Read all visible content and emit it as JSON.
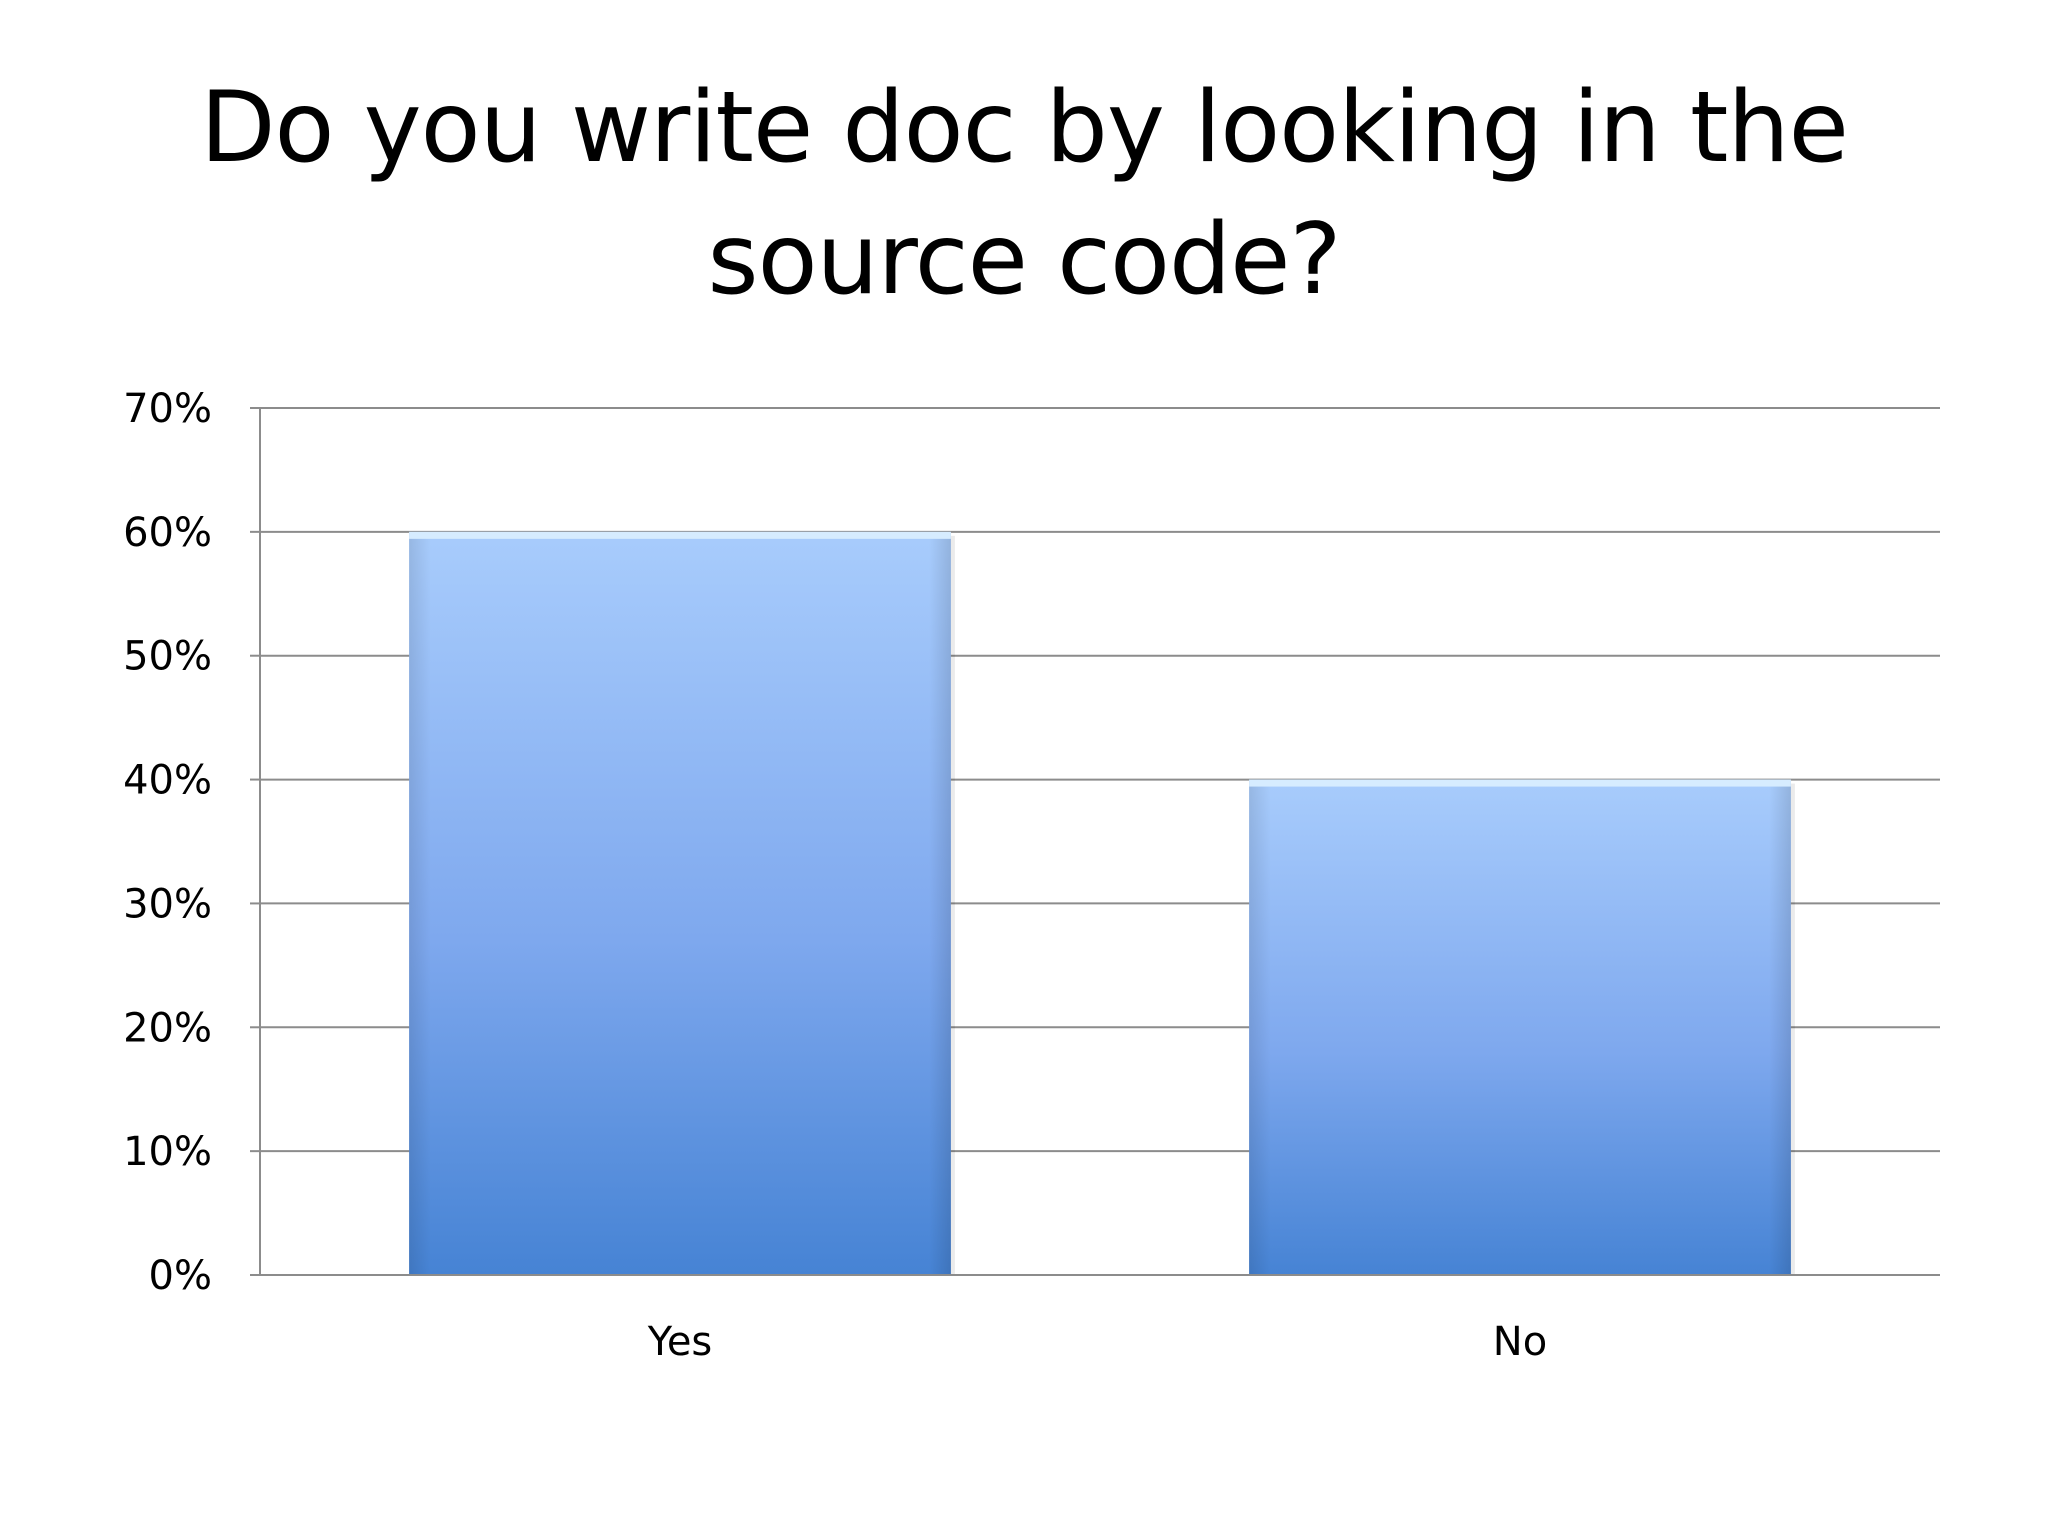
{
  "chart_data": {
    "type": "bar",
    "title": "Do you write doc by looking in the source code?",
    "categories": [
      "Yes",
      "No"
    ],
    "values": [
      60,
      40
    ],
    "ylim": [
      0,
      70
    ],
    "yticks": [
      "0%",
      "10%",
      "20%",
      "30%",
      "40%",
      "50%",
      "60%",
      "70%"
    ],
    "grid": true,
    "legend": "none",
    "colors": {
      "bar_top": "#a8ccfc",
      "bar_mid": "#7ea8ee",
      "bar_bottom": "#4683d4",
      "bar_cap": "#d6ecff",
      "grid": "#8c8c8c",
      "axis": "#8c8c8c"
    }
  }
}
